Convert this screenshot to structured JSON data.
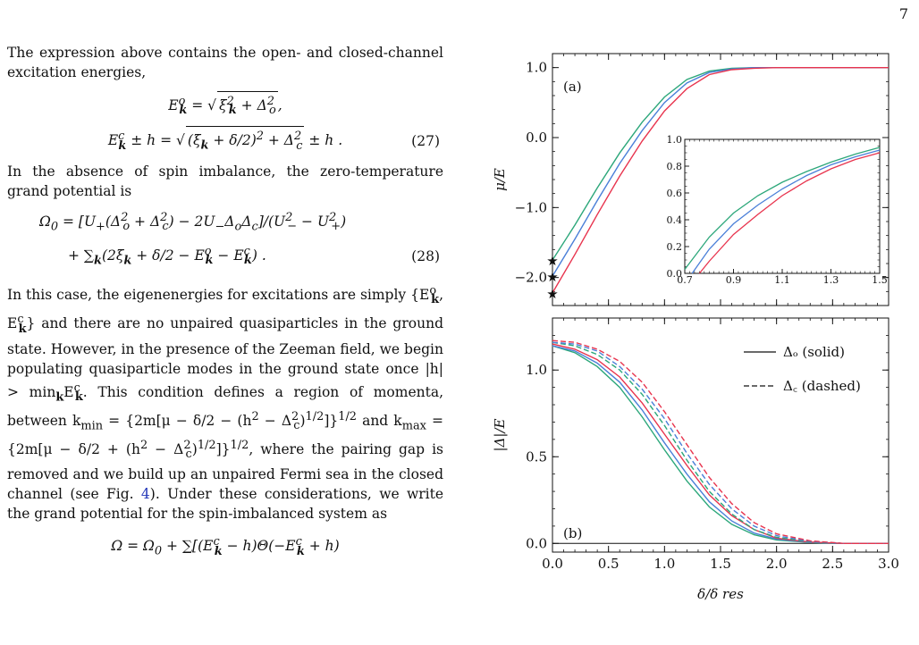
{
  "page_number": "7",
  "text": {
    "p1": "The expression above contains the open- and closed-channel excitation energies,",
    "eq27_line1": "E",
    "eq27_num": "(27)",
    "p2": "In the absence of spin imbalance, the zero-temperature grand potential is",
    "eq28_num": "(28)",
    "p3_a": "In this case, the eigenenergies for excitations are simply {E",
    "p3_b": "} and there are no unpaired quasiparticles in the ground state. However, in the presence of the Zeeman field, we begin populating quasiparticle modes in the ground state once |h| > min",
    "p3_c": ". This condition defines a region of momenta, between k",
    "p3_d": "where the pairing gap is removed and we build up an unpaired Fermi sea in the closed channel (see Fig.",
    "fig_ref": "4",
    "p3_e": "). Under these considerations, we write the grand potential for the spin-imbalanced system as",
    "eq_last": "Ω = Ω₀ + ∑[(E"
  },
  "colors": {
    "green": "#2ca77a",
    "blue": "#4a7fd8",
    "red": "#e8344e",
    "orange": "#f5a11a",
    "axis": "#111111"
  },
  "chart_data": [
    {
      "type": "line",
      "panel_label": "(a)",
      "ylabel": "μ/E_F",
      "xlim": [
        0.0,
        3.0
      ],
      "ylim": [
        -2.4,
        1.2
      ],
      "yticks": [
        "1.0",
        "0.0",
        "−1.0",
        "−2.0"
      ],
      "ytick_values": [
        1.0,
        0.0,
        -1.0,
        -2.0
      ],
      "series": [
        {
          "color": "green",
          "x": [
            0,
            0.2,
            0.4,
            0.6,
            0.8,
            1.0,
            1.2,
            1.4,
            1.6,
            1.8,
            2.0,
            2.2,
            2.5,
            3.0
          ],
          "y": [
            -1.75,
            -1.25,
            -0.72,
            -0.22,
            0.22,
            0.58,
            0.83,
            0.95,
            0.99,
            1.0,
            1.0,
            1.0,
            1.0,
            1.0
          ]
        },
        {
          "color": "blue",
          "x": [
            0,
            0.2,
            0.4,
            0.6,
            0.8,
            1.0,
            1.2,
            1.4,
            1.6,
            1.8,
            2.0,
            2.2,
            2.5,
            3.0
          ],
          "y": [
            -1.98,
            -1.45,
            -0.9,
            -0.37,
            0.1,
            0.5,
            0.78,
            0.93,
            0.98,
            1.0,
            1.0,
            1.0,
            1.0,
            1.0
          ]
        },
        {
          "color": "red",
          "x": [
            0,
            0.2,
            0.4,
            0.6,
            0.8,
            1.0,
            1.2,
            1.4,
            1.6,
            1.8,
            2.0,
            2.2,
            2.5,
            3.0
          ],
          "y": [
            -2.22,
            -1.67,
            -1.1,
            -0.55,
            -0.05,
            0.38,
            0.7,
            0.9,
            0.97,
            0.99,
            1.0,
            1.0,
            1.0,
            1.0
          ]
        }
      ],
      "markers": [
        {
          "x": 0.0,
          "y": -1.75
        },
        {
          "x": 0.0,
          "y": -1.98
        },
        {
          "x": 0.0,
          "y": -2.22
        }
      ],
      "inset": {
        "xlim": [
          0.7,
          1.5
        ],
        "ylim": [
          0.0,
          1.0
        ],
        "xticks": [
          "0.7",
          "0.9",
          "1.1",
          "1.3",
          "1.5"
        ],
        "xtick_values": [
          0.7,
          0.9,
          1.1,
          1.3,
          1.5
        ],
        "yticks": [
          "0.0",
          "0.2",
          "0.4",
          "0.6",
          "0.8",
          "1.0"
        ],
        "ytick_values": [
          0.0,
          0.2,
          0.4,
          0.6,
          0.8,
          1.0
        ],
        "series": [
          {
            "color": "green",
            "x": [
              0.7,
              0.8,
              0.9,
              1.0,
              1.1,
              1.2,
              1.3,
              1.4,
              1.5
            ],
            "y": [
              0.03,
              0.27,
              0.45,
              0.58,
              0.68,
              0.76,
              0.83,
              0.89,
              0.94
            ]
          },
          {
            "color": "blue",
            "x": [
              0.73,
              0.8,
              0.9,
              1.0,
              1.1,
              1.2,
              1.3,
              1.4,
              1.5
            ],
            "y": [
              0.0,
              0.18,
              0.37,
              0.51,
              0.63,
              0.73,
              0.81,
              0.87,
              0.92
            ]
          },
          {
            "color": "red",
            "x": [
              0.76,
              0.8,
              0.9,
              1.0,
              1.1,
              1.2,
              1.3,
              1.4,
              1.5
            ],
            "y": [
              0.0,
              0.09,
              0.29,
              0.44,
              0.58,
              0.69,
              0.78,
              0.85,
              0.9
            ]
          }
        ]
      }
    },
    {
      "type": "line",
      "panel_label": "(b)",
      "ylabel": "|Δ|/E_F",
      "xlabel": "δ/δ_res",
      "xlim": [
        0.0,
        3.0
      ],
      "ylim": [
        -0.05,
        1.3
      ],
      "xticks": [
        "0.0",
        "0.5",
        "1.0",
        "1.5",
        "2.0",
        "2.5",
        "3.0"
      ],
      "xtick_values": [
        0.0,
        0.5,
        1.0,
        1.5,
        2.0,
        2.5,
        3.0
      ],
      "yticks": [
        "1.0",
        "0.5",
        "0.0"
      ],
      "ytick_values": [
        1.0,
        0.5,
        0.0
      ],
      "legend": [
        {
          "label": "Δ_o (solid)",
          "style": "solid"
        },
        {
          "label": "Δ_c (dashed)",
          "style": "dashed"
        }
      ],
      "series": [
        {
          "color": "green",
          "style": "solid",
          "x": [
            0,
            0.2,
            0.4,
            0.6,
            0.8,
            1.0,
            1.2,
            1.4,
            1.6,
            1.8,
            2.0,
            2.3,
            2.6,
            3.0
          ],
          "y": [
            1.14,
            1.1,
            1.02,
            0.9,
            0.73,
            0.54,
            0.36,
            0.21,
            0.11,
            0.05,
            0.02,
            0.005,
            0.0,
            0.0
          ]
        },
        {
          "color": "blue",
          "style": "solid",
          "x": [
            0,
            0.2,
            0.4,
            0.6,
            0.8,
            1.0,
            1.2,
            1.4,
            1.6,
            1.8,
            2.0,
            2.3,
            2.6,
            3.0
          ],
          "y": [
            1.14,
            1.11,
            1.04,
            0.93,
            0.77,
            0.58,
            0.4,
            0.24,
            0.13,
            0.06,
            0.025,
            0.006,
            0.0,
            0.0
          ]
        },
        {
          "color": "red",
          "style": "solid",
          "x": [
            0,
            0.2,
            0.4,
            0.6,
            0.8,
            1.0,
            1.2,
            1.4,
            1.6,
            1.8,
            2.0,
            2.3,
            2.6,
            3.0
          ],
          "y": [
            1.15,
            1.12,
            1.06,
            0.96,
            0.81,
            0.63,
            0.45,
            0.28,
            0.16,
            0.08,
            0.03,
            0.008,
            0.0,
            0.0
          ]
        },
        {
          "color": "green",
          "style": "dashed",
          "x": [
            0,
            0.2,
            0.4,
            0.6,
            0.8,
            1.0,
            1.2,
            1.4,
            1.6,
            1.8,
            2.0,
            2.3,
            2.6,
            3.0
          ],
          "y": [
            1.16,
            1.14,
            1.09,
            1.0,
            0.86,
            0.68,
            0.48,
            0.3,
            0.17,
            0.08,
            0.035,
            0.01,
            0.0,
            0.0
          ]
        },
        {
          "color": "blue",
          "style": "dashed",
          "x": [
            0,
            0.2,
            0.4,
            0.6,
            0.8,
            1.0,
            1.2,
            1.4,
            1.6,
            1.8,
            2.0,
            2.3,
            2.6,
            3.0
          ],
          "y": [
            1.16,
            1.15,
            1.11,
            1.02,
            0.89,
            0.72,
            0.52,
            0.34,
            0.2,
            0.1,
            0.045,
            0.012,
            0.0,
            0.0
          ]
        },
        {
          "color": "red",
          "style": "dashed",
          "x": [
            0,
            0.2,
            0.4,
            0.6,
            0.8,
            1.0,
            1.2,
            1.4,
            1.6,
            1.8,
            2.0,
            2.3,
            2.6,
            3.0
          ],
          "y": [
            1.17,
            1.16,
            1.12,
            1.05,
            0.93,
            0.76,
            0.57,
            0.38,
            0.23,
            0.12,
            0.055,
            0.015,
            0.0,
            0.0
          ]
        }
      ]
    }
  ]
}
